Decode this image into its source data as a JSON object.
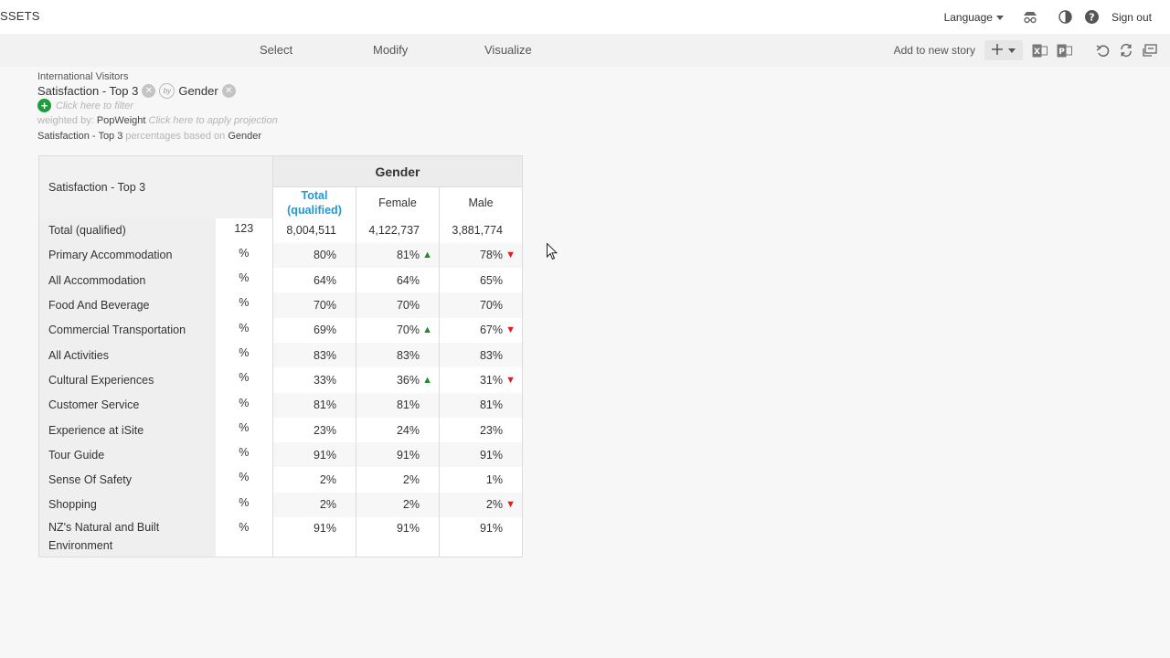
{
  "header": {
    "app_title": "SSETS",
    "language_label": "Language",
    "sign_out_label": "Sign out"
  },
  "menu": {
    "items": [
      "Select",
      "Modify",
      "Visualize"
    ],
    "add_to_story_label": "Add to new story"
  },
  "filter_area": {
    "dataset_name": "International Visitors",
    "row_variable": "Satisfaction - Top 3",
    "column_variable": "Gender",
    "filter_hint": "Click here to filter",
    "weighted_by_label": "weighted by:",
    "weight_name": "PopWeight",
    "projection_hint": "Click here to apply projection",
    "pct_basis_var": "Satisfaction - Top 3",
    "pct_basis_text": "percentages based on",
    "pct_basis_col": "Gender"
  },
  "table": {
    "corner_label": "Satisfaction - Top 3",
    "group_header": "Gender",
    "columns": [
      "Total (qualified)",
      "Female",
      "Male"
    ],
    "rows": [
      {
        "label": "Total (qualified)",
        "unit": "123",
        "values": [
          "8,004,511",
          "4,122,737",
          "3,881,774"
        ],
        "sig": [
          "",
          "",
          ""
        ]
      },
      {
        "label": "Primary Accommodation",
        "unit": "%",
        "values": [
          "80%",
          "81%",
          "78%"
        ],
        "sig": [
          "",
          "up",
          "down"
        ]
      },
      {
        "label": "All Accommodation",
        "unit": "%",
        "values": [
          "64%",
          "64%",
          "65%"
        ],
        "sig": [
          "",
          "",
          ""
        ]
      },
      {
        "label": "Food And Beverage",
        "unit": "%",
        "values": [
          "70%",
          "70%",
          "70%"
        ],
        "sig": [
          "",
          "",
          ""
        ]
      },
      {
        "label": "Commercial Transportation",
        "unit": "%",
        "values": [
          "69%",
          "70%",
          "67%"
        ],
        "sig": [
          "",
          "up",
          "down"
        ]
      },
      {
        "label": "All Activities",
        "unit": "%",
        "values": [
          "83%",
          "83%",
          "83%"
        ],
        "sig": [
          "",
          "",
          ""
        ]
      },
      {
        "label": "Cultural Experiences",
        "unit": "%",
        "values": [
          "33%",
          "36%",
          "31%"
        ],
        "sig": [
          "",
          "up",
          "down"
        ]
      },
      {
        "label": "Customer Service",
        "unit": "%",
        "values": [
          "81%",
          "81%",
          "81%"
        ],
        "sig": [
          "",
          "",
          ""
        ]
      },
      {
        "label": "Experience at iSite",
        "unit": "%",
        "values": [
          "23%",
          "24%",
          "23%"
        ],
        "sig": [
          "",
          "",
          ""
        ]
      },
      {
        "label": "Tour Guide",
        "unit": "%",
        "values": [
          "91%",
          "91%",
          "91%"
        ],
        "sig": [
          "",
          "",
          ""
        ]
      },
      {
        "label": "Sense Of Safety",
        "unit": "%",
        "values": [
          "2%",
          "2%",
          "1%"
        ],
        "sig": [
          "",
          "",
          ""
        ]
      },
      {
        "label": "Shopping",
        "unit": "%",
        "values": [
          "2%",
          "2%",
          "2%"
        ],
        "sig": [
          "",
          "",
          "down"
        ]
      },
      {
        "label": "NZ's Natural and Built Environment",
        "unit": "%",
        "values": [
          "91%",
          "91%",
          "91%"
        ],
        "sig": [
          "",
          "",
          ""
        ]
      }
    ],
    "sig_glyphs": {
      "up": "▲",
      "down": "▼"
    }
  },
  "colors": {
    "total_header": "#1a9bd8",
    "sig_up": "#1e8b2a",
    "sig_down": "#e02020",
    "add_filter": "#1a9e3a"
  },
  "icons": [
    "incognito-icon",
    "contrast-icon",
    "help-icon",
    "plus-icon",
    "excel-export-icon",
    "powerpoint-export-icon",
    "undo-icon",
    "refresh-icon",
    "swap-icon",
    "remove-icon",
    "add-filter-icon"
  ]
}
